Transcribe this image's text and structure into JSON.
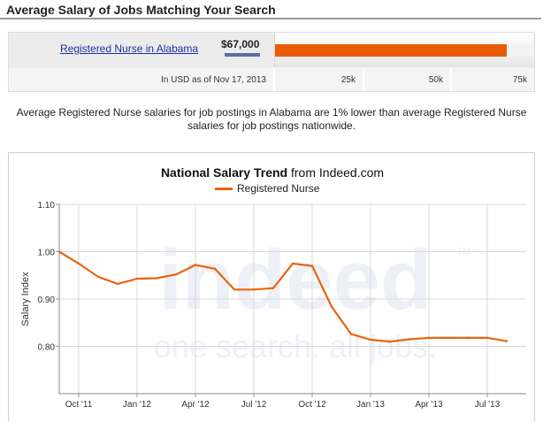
{
  "header": {
    "title": "Average Salary of Jobs Matching Your Search"
  },
  "salary_box": {
    "job_link": "Registered Nurse in Alabama",
    "salary": "$67,000",
    "bar_fill_fraction": 0.893,
    "bar_color": "#e85d04",
    "note": "In USD as of Nov 17, 2013",
    "scale_labels": [
      "25k",
      "50k",
      "75k"
    ]
  },
  "summary": "Average Registered Nurse salaries for job postings in Alabama are 1% lower than average Registered Nurse salaries for job postings nationwide.",
  "chart": {
    "title_bold": "National Salary Trend",
    "title_rest": "from Indeed.com",
    "watermark": {
      "brand": "indeed",
      "tagline": "one search. all jobs.",
      "tm": "TM"
    }
  },
  "chart_data": {
    "type": "line",
    "ylabel": "Salary Index",
    "xlabel": "",
    "ylim": [
      0.7,
      1.1
    ],
    "yticks": [
      "1.10",
      "1.00",
      "0.90",
      "0.80"
    ],
    "ytick_values": [
      1.1,
      1.0,
      0.9,
      0.8
    ],
    "xticks": [
      "Oct '11",
      "Jan '12",
      "Apr '12",
      "Jul '12",
      "Oct '12",
      "Jan '13",
      "Apr '13",
      "Jul '13"
    ],
    "xtick_months": [
      0,
      3,
      6,
      9,
      12,
      15,
      18,
      21
    ],
    "x_range_months": [
      -1,
      23
    ],
    "grid": true,
    "legend_position": "top-center",
    "series": [
      {
        "name": "Registered Nurse",
        "color": "#e8650c",
        "points": [
          {
            "x": "Sep 2011",
            "y": 1.0
          },
          {
            "x": "Oct 2011",
            "y": 0.975
          },
          {
            "x": "Nov 2011",
            "y": 0.947
          },
          {
            "x": "Dec 2011",
            "y": 0.932
          },
          {
            "x": "Jan 2012",
            "y": 0.943
          },
          {
            "x": "Feb 2012",
            "y": 0.944
          },
          {
            "x": "Mar 2012",
            "y": 0.952
          },
          {
            "x": "Apr 2012",
            "y": 0.972
          },
          {
            "x": "May 2012",
            "y": 0.964
          },
          {
            "x": "Jun 2012",
            "y": 0.92
          },
          {
            "x": "Jul 2012",
            "y": 0.92
          },
          {
            "x": "Aug 2012",
            "y": 0.923
          },
          {
            "x": "Sep 2012",
            "y": 0.975
          },
          {
            "x": "Oct 2012",
            "y": 0.97
          },
          {
            "x": "Nov 2012",
            "y": 0.884
          },
          {
            "x": "Dec 2012",
            "y": 0.826
          },
          {
            "x": "Jan 2013",
            "y": 0.814
          },
          {
            "x": "Feb 2013",
            "y": 0.81
          },
          {
            "x": "Mar 2013",
            "y": 0.815
          },
          {
            "x": "Apr 2013",
            "y": 0.818
          },
          {
            "x": "May 2013",
            "y": 0.818
          },
          {
            "x": "Jun 2013",
            "y": 0.818
          },
          {
            "x": "Jul 2013",
            "y": 0.818
          },
          {
            "x": "Aug 2013",
            "y": 0.811
          }
        ]
      }
    ]
  }
}
